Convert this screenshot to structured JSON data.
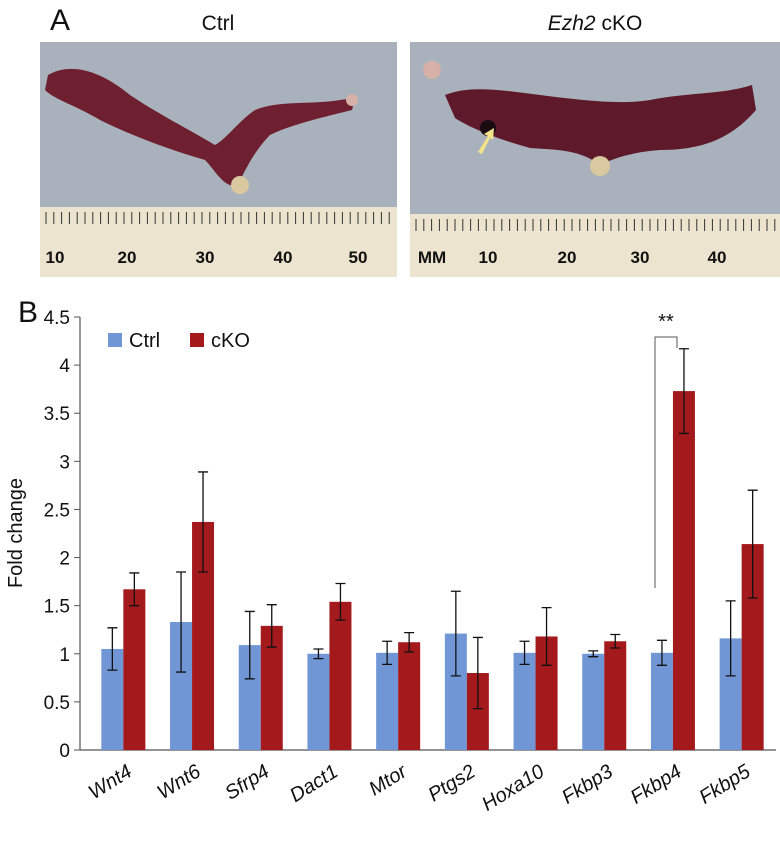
{
  "panel_a": {
    "label": "A",
    "photos": [
      {
        "title": "Ctrl",
        "ruler": [
          "10",
          "20",
          "30",
          "40",
          "50"
        ]
      },
      {
        "gene": "Ezh2",
        "title": "cKO",
        "ruler": [
          "MM",
          "10",
          "20",
          "30",
          "40"
        ]
      }
    ]
  },
  "panel_b": {
    "label": "B"
  },
  "chart_data": {
    "type": "bar",
    "ylabel": "Fold change",
    "categories": [
      "Wnt4",
      "Wnt6",
      "Sfrp4",
      "Dact1",
      "Mtor",
      "Ptgs2",
      "Hoxa10",
      "Fkbp3",
      "Fkbp4",
      "Fkbp5"
    ],
    "series": [
      {
        "name": "Ctrl",
        "color": "#7096d6",
        "values": [
          1.05,
          1.33,
          1.09,
          1.0,
          1.01,
          1.21,
          1.01,
          1.0,
          1.01,
          1.16
        ],
        "errors": [
          0.22,
          0.52,
          0.35,
          0.05,
          0.12,
          0.44,
          0.12,
          0.03,
          0.13,
          0.39
        ]
      },
      {
        "name": "cKO",
        "color": "#a3191c",
        "values": [
          1.67,
          2.37,
          1.29,
          1.54,
          1.12,
          0.8,
          1.18,
          1.13,
          3.73,
          2.14
        ],
        "errors": [
          0.17,
          0.52,
          0.22,
          0.19,
          0.1,
          0.37,
          0.3,
          0.07,
          0.44,
          0.56
        ]
      }
    ],
    "ylim": [
      0,
      4.5
    ],
    "yticks": [
      0,
      0.5,
      1,
      1.5,
      2,
      2.5,
      3,
      3.5,
      4,
      4.5
    ],
    "annotations": [
      {
        "text": "**"
      }
    ],
    "legend": "top-left"
  }
}
